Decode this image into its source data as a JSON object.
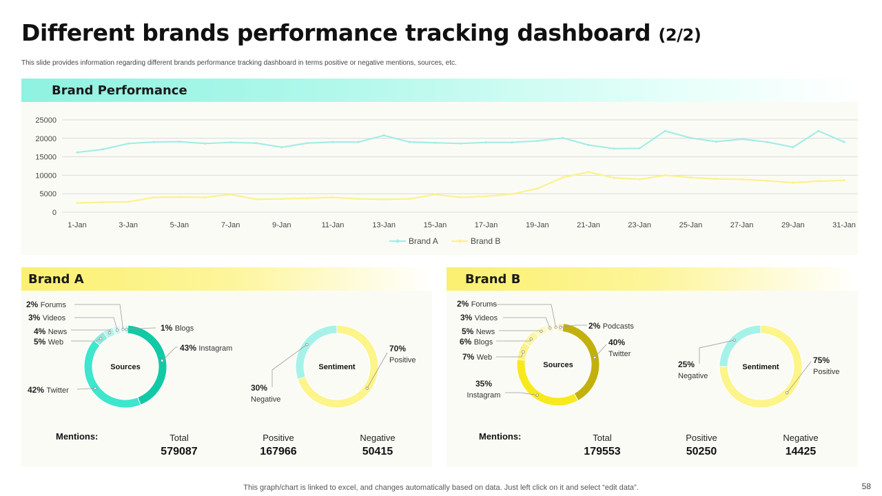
{
  "title": {
    "main": "Different brands performance tracking dashboard",
    "suffix": "(2/2)"
  },
  "subtitle": "This slide provides information regarding different brands performance tracking dashboard in terms positive or negative mentions, sources, etc.",
  "brand_performance": {
    "header": "Brand Performance"
  },
  "brand_a": {
    "header": "Brand A",
    "mentions_label": "Mentions:",
    "metrics": [
      {
        "label": "Total",
        "value": "579087"
      },
      {
        "label": "Positive",
        "value": "167966"
      },
      {
        "label": "Negative",
        "value": "50415"
      }
    ]
  },
  "brand_b": {
    "header": "Brand B",
    "mentions_label": "Mentions:",
    "metrics": [
      {
        "label": "Total",
        "value": "179553"
      },
      {
        "label": "Positive",
        "value": "50250"
      },
      {
        "label": "Negative",
        "value": "14425"
      }
    ]
  },
  "footer": "This graph/chart is linked to excel, and changes automatically based on data. Just left click on it and select “edit data”.",
  "page_number": "58",
  "chart_data": [
    {
      "type": "line",
      "title": "Brand Performance",
      "categories": [
        "1-Jan",
        "2-Jan",
        "3-Jan",
        "4-Jan",
        "5-Jan",
        "6-Jan",
        "7-Jan",
        "8-Jan",
        "9-Jan",
        "10-Jan",
        "11-Jan",
        "12-Jan",
        "13-Jan",
        "14-Jan",
        "15-Jan",
        "16-Jan",
        "17-Jan",
        "18-Jan",
        "19-Jan",
        "20-Jan",
        "21-Jan",
        "22-Jan",
        "23-Jan",
        "24-Jan",
        "25-Jan",
        "26-Jan",
        "27-Jan",
        "28-Jan",
        "29-Jan",
        "30-Jan",
        "31-Jan"
      ],
      "tick_labels": [
        "1-Jan",
        "3-Jan",
        "5-Jan",
        "7-Jan",
        "9-Jan",
        "11-Jan",
        "13-Jan",
        "15-Jan",
        "17-Jan",
        "19-Jan",
        "21-Jan",
        "23-Jan",
        "25-Jan",
        "27-Jan",
        "29-Jan",
        "31-Jan"
      ],
      "y_ticks": [
        0,
        5000,
        10000,
        15000,
        20000,
        25000
      ],
      "ylim": [
        0,
        25000
      ],
      "grid": true,
      "legend_position": "bottom",
      "series": [
        {
          "name": "Brand A",
          "color": "#a3ede6",
          "values": [
            16200,
            17000,
            18600,
            19000,
            19100,
            18600,
            18900,
            18700,
            17600,
            18700,
            19000,
            19000,
            20800,
            19000,
            18800,
            18600,
            18900,
            18900,
            19300,
            20100,
            18200,
            17200,
            17300,
            22000,
            20100,
            19100,
            19800,
            19000,
            17600,
            22000,
            19000
          ]
        },
        {
          "name": "Brand B",
          "color": "#fbf28c",
          "values": [
            2500,
            2700,
            2800,
            4000,
            4100,
            4000,
            4800,
            3500,
            3600,
            3800,
            4000,
            3600,
            3500,
            3600,
            4800,
            4000,
            4300,
            4900,
            6400,
            9400,
            10900,
            9300,
            8900,
            10000,
            9400,
            9000,
            8900,
            8500,
            8000,
            8400,
            8600
          ]
        }
      ]
    },
    {
      "type": "pie",
      "title": "Sources",
      "brand": "Brand A",
      "slices": [
        {
          "name": "Blogs",
          "value": 1,
          "color": "#b9f3e8"
        },
        {
          "name": "Instagram",
          "value": 43,
          "color": "#12c9a5"
        },
        {
          "name": "Twitter",
          "value": 42,
          "color": "#3de6cc"
        },
        {
          "name": "Web",
          "value": 5,
          "color": "#8feadb"
        },
        {
          "name": "News",
          "value": 4,
          "color": "#b6f2e8"
        },
        {
          "name": "Videos",
          "value": 3,
          "color": "#d6f8f2"
        },
        {
          "name": "Forums",
          "value": 2,
          "color": "#e7fbf8"
        }
      ]
    },
    {
      "type": "pie",
      "title": "Sentiment",
      "brand": "Brand A",
      "slices": [
        {
          "name": "Positive",
          "value": 70,
          "color": "#fdf48a"
        },
        {
          "name": "Negative",
          "value": 30,
          "color": "#a6f2e8"
        }
      ]
    },
    {
      "type": "pie",
      "title": "Sources",
      "brand": "Brand B",
      "slices": [
        {
          "name": "Podcasts",
          "value": 2,
          "color": "#f5efb5"
        },
        {
          "name": "Twitter",
          "value": 40,
          "color": "#c2b00d"
        },
        {
          "name": "Instagram",
          "value": 35,
          "color": "#f8e91e"
        },
        {
          "name": "Web",
          "value": 7,
          "color": "#fbf28a"
        },
        {
          "name": "Blogs",
          "value": 6,
          "color": "#fcf5a9"
        },
        {
          "name": "News",
          "value": 5,
          "color": "#fdf8c6"
        },
        {
          "name": "Videos",
          "value": 3,
          "color": "#fefadb"
        },
        {
          "name": "Forums",
          "value": 2,
          "color": "#fefbe6"
        }
      ]
    },
    {
      "type": "pie",
      "title": "Sentiment",
      "brand": "Brand B",
      "slices": [
        {
          "name": "Positive",
          "value": 75,
          "color": "#fdf48a"
        },
        {
          "name": "Negative",
          "value": 25,
          "color": "#a6f2e8"
        }
      ]
    }
  ]
}
